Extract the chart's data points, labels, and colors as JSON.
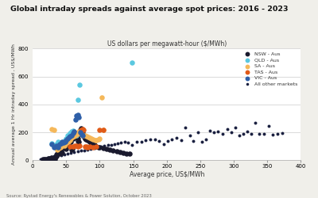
{
  "title": "Global intraday spreads against average spot prices: 2016 - 2023",
  "subtitle": "US dollars per megawatt-hour ($/MWh)",
  "xlabel": "Average price, US$/MWh",
  "ylabel": "Annual average 1 Hr intraday spread , US$/MWh",
  "source": "Source: Rystad Energy's Renewables & Power Solution, October 2023",
  "xlim": [
    0,
    400
  ],
  "ylim": [
    0,
    800
  ],
  "xticks": [
    0,
    50,
    100,
    150,
    200,
    250,
    300,
    350,
    400
  ],
  "yticks": [
    0,
    200,
    400,
    600,
    800
  ],
  "plot_bg": "#ffffff",
  "fig_bg": "#f0efea",
  "legend_order": [
    "NSW - Aus",
    "QLD - Aus",
    "SA - Aus",
    "TAS - Aus",
    "VIC - Aus",
    "All other markets"
  ],
  "series": {
    "NSW - Aus": {
      "color": "#1a1a2e",
      "size": 22,
      "points": [
        [
          15,
          5
        ],
        [
          18,
          8
        ],
        [
          20,
          10
        ],
        [
          22,
          5
        ],
        [
          24,
          12
        ],
        [
          25,
          15
        ],
        [
          26,
          8
        ],
        [
          28,
          18
        ],
        [
          30,
          12
        ],
        [
          32,
          20
        ],
        [
          33,
          8
        ],
        [
          34,
          25
        ],
        [
          35,
          30
        ],
        [
          36,
          40
        ],
        [
          37,
          50
        ],
        [
          38,
          55
        ],
        [
          39,
          45
        ],
        [
          40,
          65
        ],
        [
          41,
          70
        ],
        [
          42,
          75
        ],
        [
          43,
          60
        ],
        [
          44,
          55
        ],
        [
          45,
          85
        ],
        [
          46,
          100
        ],
        [
          47,
          120
        ],
        [
          48,
          110
        ],
        [
          49,
          90
        ],
        [
          50,
          80
        ],
        [
          51,
          130
        ],
        [
          52,
          120
        ],
        [
          53,
          115
        ],
        [
          54,
          105
        ],
        [
          55,
          140
        ],
        [
          56,
          150
        ],
        [
          57,
          130
        ],
        [
          58,
          75
        ],
        [
          59,
          80
        ],
        [
          60,
          155
        ],
        [
          61,
          165
        ],
        [
          62,
          160
        ],
        [
          63,
          175
        ],
        [
          64,
          180
        ],
        [
          65,
          195
        ],
        [
          66,
          170
        ],
        [
          67,
          155
        ],
        [
          68,
          140
        ],
        [
          69,
          130
        ],
        [
          70,
          205
        ],
        [
          71,
          220
        ],
        [
          72,
          230
        ],
        [
          73,
          215
        ],
        [
          74,
          195
        ],
        [
          75,
          185
        ],
        [
          76,
          170
        ],
        [
          77,
          165
        ],
        [
          78,
          155
        ],
        [
          79,
          150
        ],
        [
          80,
          160
        ],
        [
          82,
          145
        ],
        [
          84,
          140
        ],
        [
          85,
          135
        ],
        [
          87,
          125
        ],
        [
          90,
          120
        ],
        [
          92,
          110
        ],
        [
          95,
          100
        ],
        [
          98,
          95
        ],
        [
          100,
          90
        ],
        [
          105,
          85
        ],
        [
          110,
          80
        ],
        [
          115,
          75
        ],
        [
          120,
          70
        ],
        [
          125,
          65
        ],
        [
          130,
          60
        ],
        [
          135,
          55
        ],
        [
          140,
          50
        ],
        [
          145,
          45
        ]
      ]
    },
    "QLD - Aus": {
      "color": "#5bc8e0",
      "size": 22,
      "points": [
        [
          28,
          120
        ],
        [
          32,
          105
        ],
        [
          35,
          115
        ],
        [
          38,
          130
        ],
        [
          40,
          125
        ],
        [
          42,
          110
        ],
        [
          44,
          115
        ],
        [
          46,
          130
        ],
        [
          48,
          145
        ],
        [
          50,
          155
        ],
        [
          52,
          175
        ],
        [
          54,
          185
        ],
        [
          56,
          195
        ],
        [
          58,
          205
        ],
        [
          60,
          210
        ],
        [
          62,
          175
        ],
        [
          65,
          180
        ],
        [
          67,
          435
        ],
        [
          70,
          540
        ],
        [
          148,
          698
        ]
      ]
    },
    "SA - Aus": {
      "color": "#f5b85a",
      "size": 22,
      "points": [
        [
          28,
          225
        ],
        [
          32,
          215
        ],
        [
          35,
          85
        ],
        [
          37,
          75
        ],
        [
          39,
          85
        ],
        [
          41,
          95
        ],
        [
          43,
          100
        ],
        [
          45,
          110
        ],
        [
          47,
          105
        ],
        [
          49,
          115
        ],
        [
          51,
          125
        ],
        [
          53,
          135
        ],
        [
          55,
          145
        ],
        [
          57,
          155
        ],
        [
          59,
          165
        ],
        [
          61,
          170
        ],
        [
          63,
          175
        ],
        [
          65,
          185
        ],
        [
          67,
          195
        ],
        [
          69,
          205
        ],
        [
          71,
          195
        ],
        [
          73,
          185
        ],
        [
          75,
          180
        ],
        [
          78,
          175
        ],
        [
          80,
          170
        ],
        [
          83,
          165
        ],
        [
          85,
          160
        ],
        [
          88,
          155
        ],
        [
          90,
          150
        ],
        [
          93,
          145
        ],
        [
          95,
          145
        ],
        [
          98,
          150
        ],
        [
          100,
          155
        ],
        [
          103,
          450
        ],
        [
          106,
          220
        ]
      ]
    },
    "TAS - Aus": {
      "color": "#e05a18",
      "size": 22,
      "points": [
        [
          55,
          100
        ],
        [
          60,
          98
        ],
        [
          63,
          105
        ],
        [
          65,
          102
        ],
        [
          67,
          100
        ],
        [
          70,
          105
        ],
        [
          72,
          220
        ],
        [
          74,
          225
        ],
        [
          76,
          215
        ],
        [
          78,
          100
        ],
        [
          80,
          98
        ],
        [
          82,
          95
        ],
        [
          85,
          100
        ],
        [
          90,
          95
        ],
        [
          95,
          100
        ],
        [
          100,
          220
        ],
        [
          105,
          215
        ]
      ]
    },
    "VIC - Aus": {
      "color": "#2e5fa8",
      "size": 22,
      "points": [
        [
          28,
          115
        ],
        [
          32,
          95
        ],
        [
          35,
          105
        ],
        [
          38,
          95
        ],
        [
          40,
          115
        ],
        [
          42,
          120
        ],
        [
          44,
          130
        ],
        [
          46,
          125
        ],
        [
          48,
          135
        ],
        [
          50,
          145
        ],
        [
          52,
          155
        ],
        [
          54,
          165
        ],
        [
          56,
          170
        ],
        [
          58,
          175
        ],
        [
          60,
          195
        ],
        [
          62,
          205
        ],
        [
          64,
          290
        ],
        [
          65,
          320
        ],
        [
          67,
          325
        ],
        [
          69,
          310
        ],
        [
          71,
          200
        ],
        [
          73,
          185
        ],
        [
          75,
          175
        ]
      ]
    },
    "All other markets": {
      "color": "#1a2040",
      "size": 8,
      "points": [
        [
          12,
          8
        ],
        [
          18,
          12
        ],
        [
          22,
          18
        ],
        [
          27,
          22
        ],
        [
          32,
          28
        ],
        [
          37,
          32
        ],
        [
          42,
          38
        ],
        [
          47,
          42
        ],
        [
          52,
          48
        ],
        [
          57,
          52
        ],
        [
          62,
          58
        ],
        [
          67,
          62
        ],
        [
          72,
          68
        ],
        [
          77,
          72
        ],
        [
          82,
          78
        ],
        [
          87,
          82
        ],
        [
          92,
          88
        ],
        [
          97,
          92
        ],
        [
          102,
          98
        ],
        [
          107,
          102
        ],
        [
          112,
          108
        ],
        [
          117,
          112
        ],
        [
          122,
          118
        ],
        [
          127,
          122
        ],
        [
          132,
          128
        ],
        [
          137,
          132
        ],
        [
          142,
          128
        ],
        [
          148,
          110
        ],
        [
          155,
          130
        ],
        [
          162,
          135
        ],
        [
          168,
          142
        ],
        [
          175,
          150
        ],
        [
          182,
          148
        ],
        [
          188,
          138
        ],
        [
          195,
          118
        ],
        [
          202,
          138
        ],
        [
          208,
          148
        ],
        [
          215,
          158
        ],
        [
          222,
          145
        ],
        [
          228,
          232
        ],
        [
          235,
          178
        ],
        [
          240,
          138
        ],
        [
          246,
          202
        ],
        [
          252,
          132
        ],
        [
          258,
          148
        ],
        [
          264,
          212
        ],
        [
          270,
          202
        ],
        [
          276,
          205
        ],
        [
          283,
          188
        ],
        [
          290,
          222
        ],
        [
          296,
          202
        ],
        [
          302,
          232
        ],
        [
          308,
          178
        ],
        [
          314,
          192
        ],
        [
          320,
          208
        ],
        [
          326,
          188
        ],
        [
          332,
          270
        ],
        [
          338,
          192
        ],
        [
          345,
          192
        ],
        [
          352,
          248
        ],
        [
          358,
          185
        ],
        [
          365,
          192
        ],
        [
          372,
          195
        ]
      ]
    }
  }
}
